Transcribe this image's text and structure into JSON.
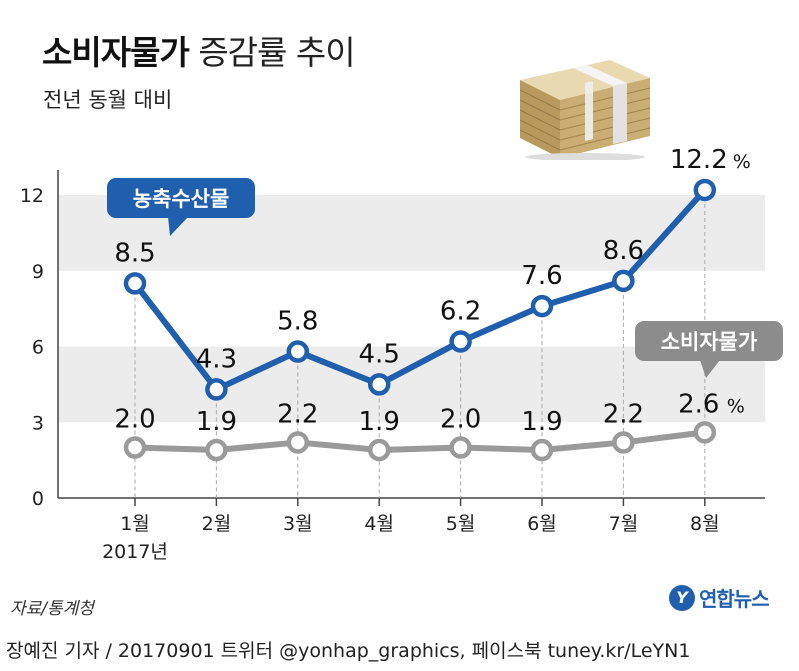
{
  "header": {
    "title_bold": "소비자물가",
    "title_light": "증감률 추이",
    "subtitle": "전년 동월 대비"
  },
  "chart_data": {
    "type": "line",
    "categories": [
      "1월",
      "2월",
      "3월",
      "4월",
      "5월",
      "6월",
      "7월",
      "8월"
    ],
    "year_label": "2017년",
    "yticks": [
      0,
      3,
      6,
      9,
      12
    ],
    "ylim": [
      0,
      12
    ],
    "series": [
      {
        "name": "농축수산물",
        "color": "#1f5fae",
        "values": [
          8.5,
          4.3,
          5.8,
          4.5,
          6.2,
          7.6,
          8.6,
          12.2
        ],
        "labels": [
          "8.5",
          "4.3",
          "5.8",
          "4.5",
          "6.2",
          "7.6",
          "8.6",
          "12.2"
        ]
      },
      {
        "name": "소비자물가",
        "color": "#9a9a9a",
        "values": [
          2.0,
          1.9,
          2.2,
          1.9,
          2.0,
          1.9,
          2.2,
          2.6
        ],
        "labels": [
          "2.0",
          "1.9",
          "2.2",
          "1.9",
          "2.0",
          "1.9",
          "2.2",
          "2.6"
        ]
      }
    ],
    "unit": "%",
    "grid": "alternating bands"
  },
  "source": "자료/통계청",
  "footer": "장예진 기자 / 20170901 트위터 @yonhap_graphics, 페이스북 tuney.kr/LeYN1",
  "logo": {
    "mark": "Y",
    "text": "연합뉴스"
  },
  "icons": {
    "illustration": "money-stack-icon"
  }
}
